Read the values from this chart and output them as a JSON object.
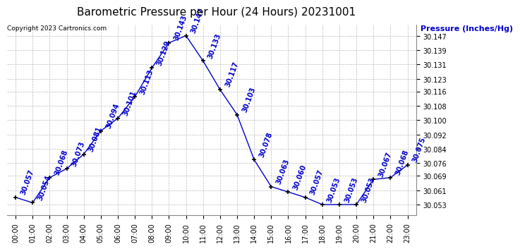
{
  "title": "Barometric Pressure per Hour (24 Hours) 20231001",
  "ylabel": "Pressure (Inches/Hg)",
  "copyright_text": "Copyright 2023 Cartronics.com",
  "line_color": "#0000cc",
  "marker_color": "#000000",
  "background_color": "#ffffff",
  "grid_color": "#bbbbbb",
  "hours": [
    0,
    1,
    2,
    3,
    4,
    5,
    6,
    7,
    8,
    9,
    10,
    11,
    12,
    13,
    14,
    15,
    16,
    17,
    18,
    19,
    20,
    21,
    22,
    23
  ],
  "pressures": [
    30.057,
    30.054,
    30.068,
    30.073,
    30.081,
    30.094,
    30.101,
    30.113,
    30.129,
    30.143,
    30.147,
    30.133,
    30.117,
    30.103,
    30.078,
    30.063,
    30.06,
    30.057,
    30.053,
    30.053,
    30.053,
    30.067,
    30.068,
    30.075
  ],
  "ylim_min": 30.047,
  "ylim_max": 30.153,
  "yticks": [
    30.053,
    30.061,
    30.069,
    30.076,
    30.084,
    30.092,
    30.1,
    30.108,
    30.116,
    30.123,
    30.131,
    30.139,
    30.147
  ],
  "ytick_labels": [
    "30.053",
    "30.061",
    "30.069",
    "30.076",
    "30.084",
    "30.092",
    "30.100",
    "30.108",
    "30.116",
    "30.123",
    "30.131",
    "30.139",
    "30.147"
  ],
  "title_fontsize": 11,
  "label_fontsize": 8,
  "tick_fontsize": 7,
  "annotation_fontsize": 7,
  "annotation_color": "#0000cc",
  "title_color": "#000000",
  "ylabel_color": "#0000cc",
  "copyright_color": "#000000"
}
